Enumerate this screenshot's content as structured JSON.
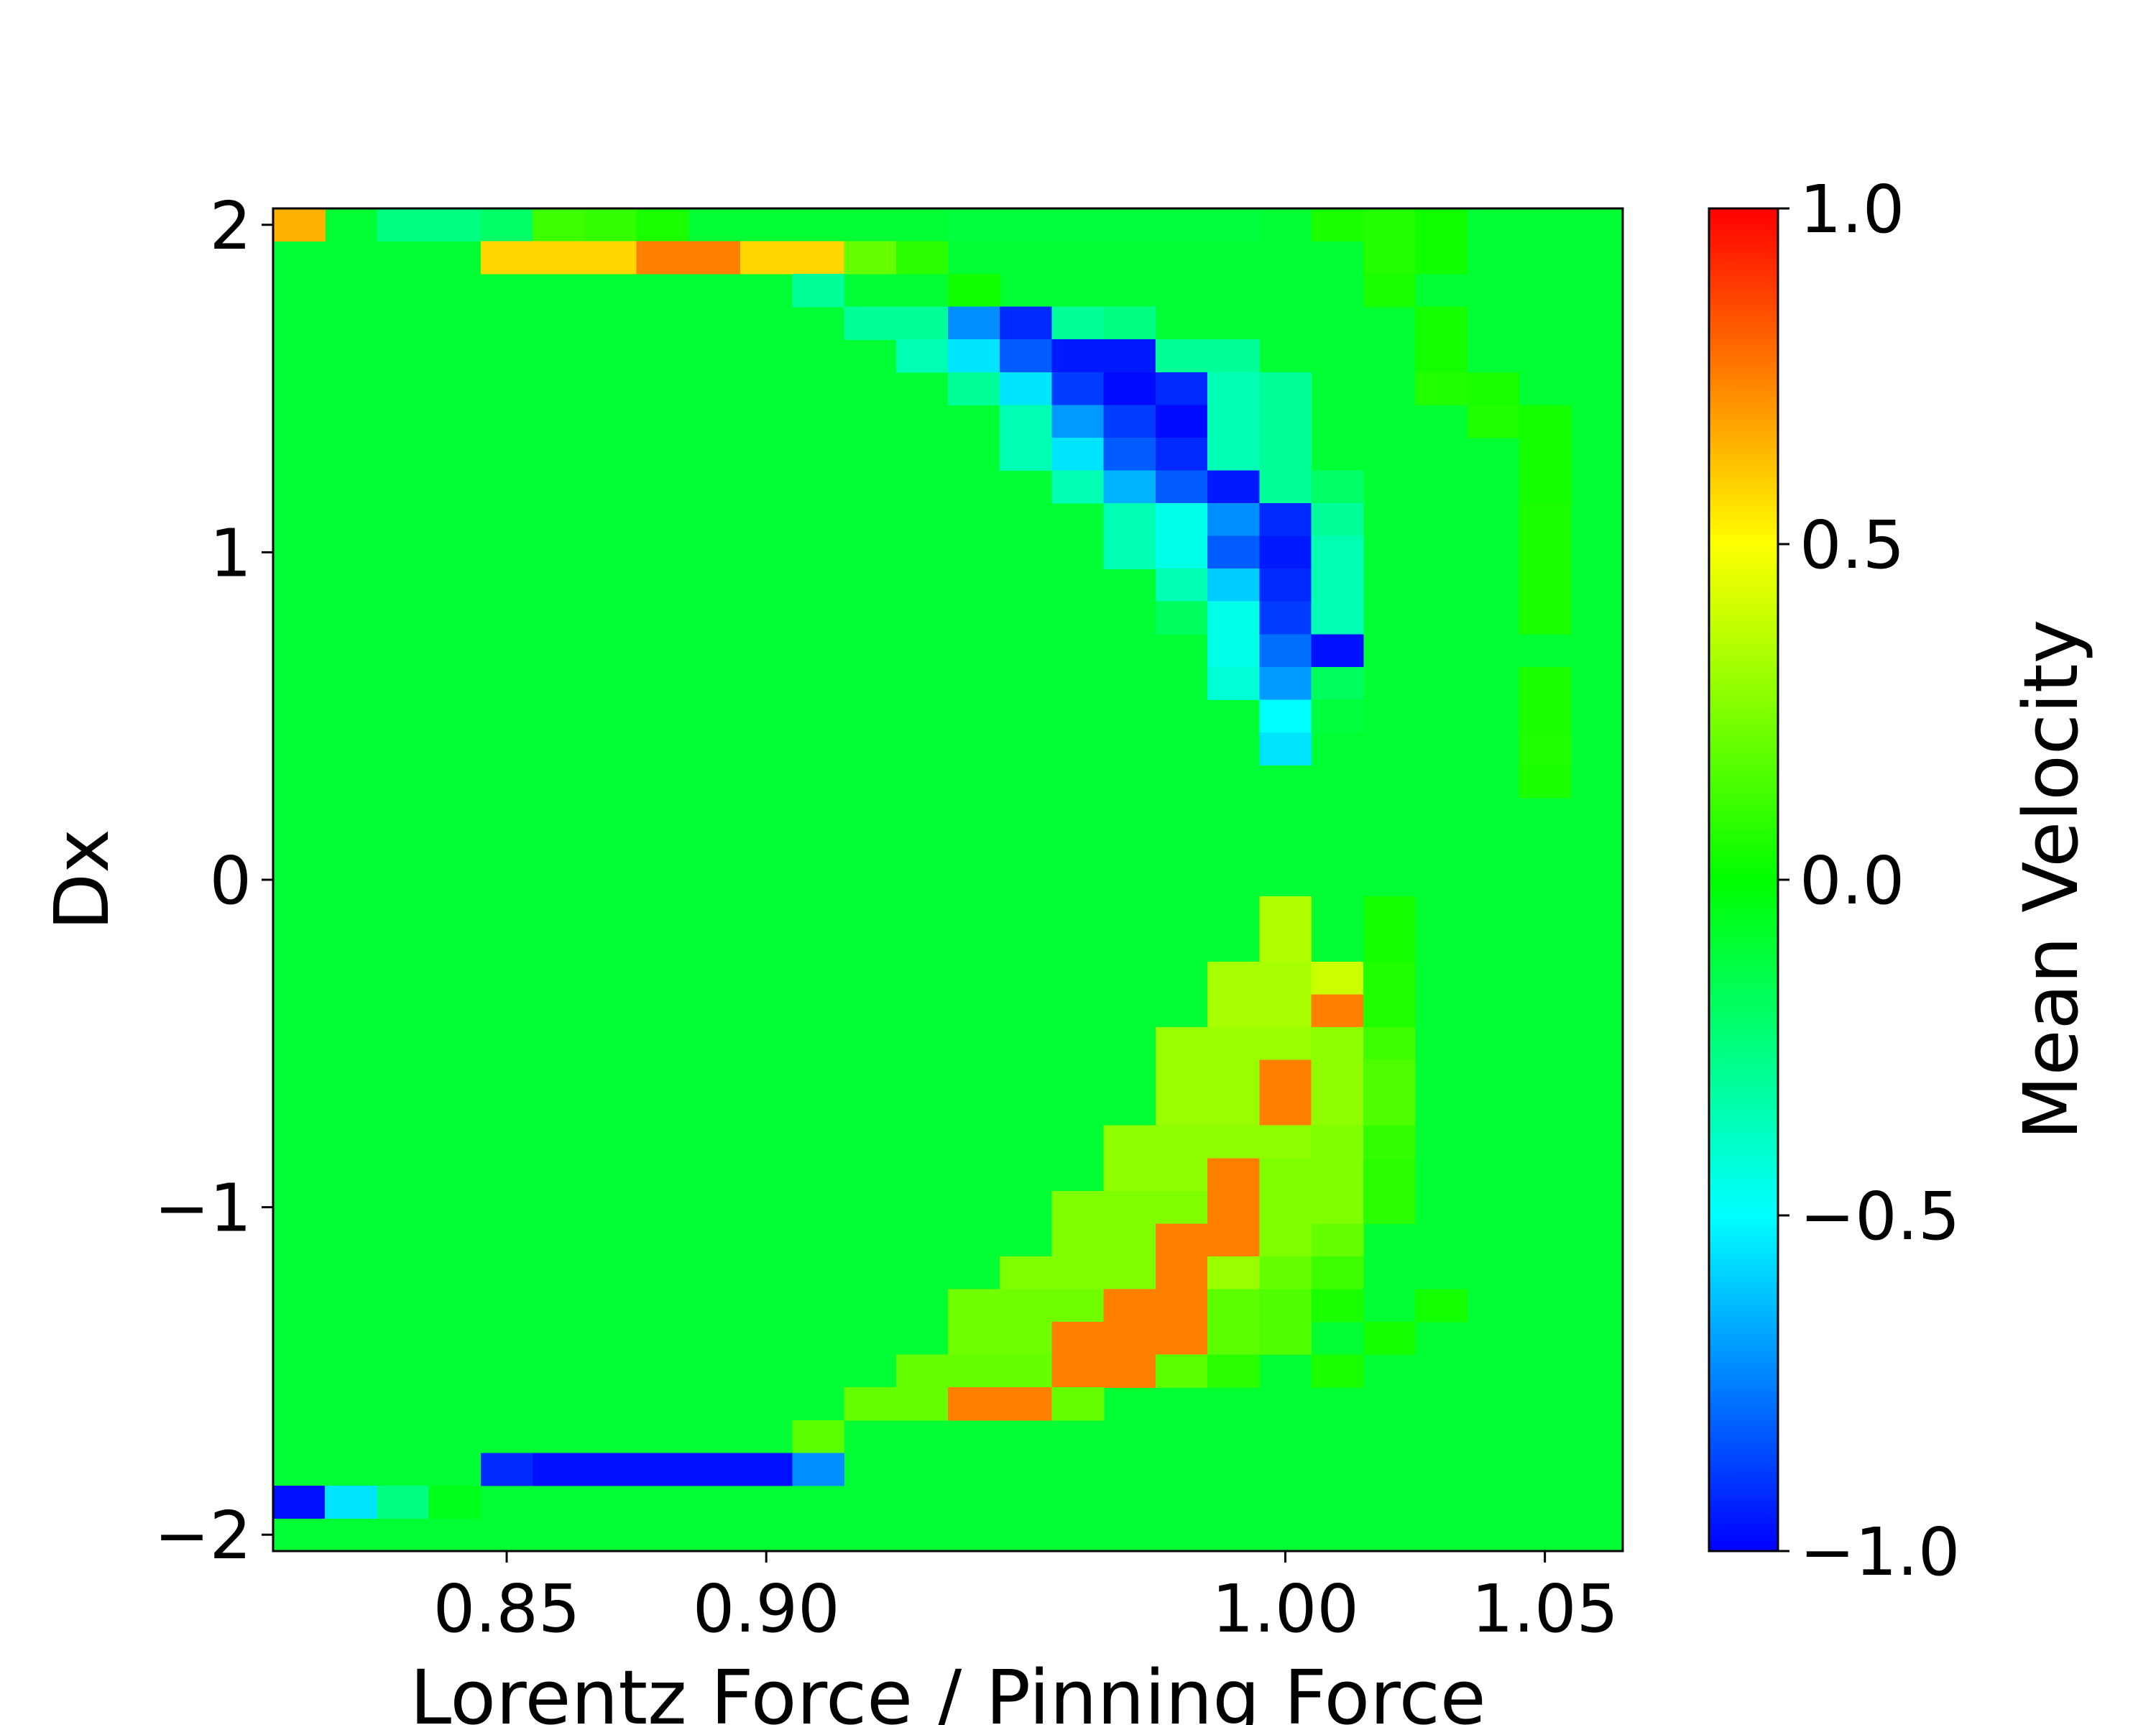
{
  "chart_data": {
    "type": "heatmap",
    "xlabel": "Lorentz Force / Pinning Force",
    "ylabel": "Dx",
    "xlim": [
      0.805,
      1.065
    ],
    "ylim": [
      -2.05,
      2.05
    ],
    "x_ticks": [
      0.85,
      0.9,
      1.0,
      1.05
    ],
    "x_tick_labels": [
      "0.85",
      "0.90",
      "1.00",
      "1.05"
    ],
    "y_ticks": [
      2,
      1,
      0,
      -1,
      -2
    ],
    "y_tick_labels": [
      "2",
      "1",
      "0",
      "−1",
      "−2"
    ],
    "grid": false,
    "x_start": 0.805,
    "x_step": 0.01,
    "y_start": 2.05,
    "y_step": -0.1,
    "colorbar": {
      "label": "Mean Velocity",
      "range": [
        -1.0,
        1.0
      ],
      "ticks": [
        1.0,
        0.5,
        0.0,
        -0.5,
        -1.0
      ],
      "tick_labels": [
        "1.0",
        "0.5",
        "0.0",
        "−0.5",
        "−1.0"
      ],
      "colormap": "jet-like"
    },
    "base_value": 0.0,
    "base_color": "#00ff33",
    "cells": [
      {
        "ix": 0,
        "iy": 0,
        "v": 0.65
      },
      {
        "ix": 2,
        "iy": 0,
        "v": -0.25
      },
      {
        "ix": 3,
        "iy": 0,
        "v": -0.25
      },
      {
        "ix": 4,
        "iy": 0,
        "v": -0.2
      },
      {
        "ix": 5,
        "iy": 0,
        "v": 0.12
      },
      {
        "ix": 6,
        "iy": 0,
        "v": 0.1
      },
      {
        "ix": 7,
        "iy": 0,
        "v": 0.05
      },
      {
        "ix": 13,
        "iy": 0,
        "v": -0.12
      },
      {
        "ix": 14,
        "iy": 0,
        "v": -0.12
      },
      {
        "ix": 15,
        "iy": 0,
        "v": -0.12
      },
      {
        "ix": 16,
        "iy": 0,
        "v": -0.12
      },
      {
        "ix": 17,
        "iy": 0,
        "v": -0.12
      },
      {
        "ix": 18,
        "iy": 0,
        "v": -0.12
      },
      {
        "ix": 20,
        "iy": 0,
        "v": 0.05
      },
      {
        "ix": 21,
        "iy": 0,
        "v": 0.07
      },
      {
        "ix": 22,
        "iy": 0,
        "v": 0.03
      },
      {
        "ix": 4,
        "iy": 1,
        "v": 0.58
      },
      {
        "ix": 5,
        "iy": 1,
        "v": 0.58
      },
      {
        "ix": 6,
        "iy": 1,
        "v": 0.58
      },
      {
        "ix": 7,
        "iy": 1,
        "v": 0.75
      },
      {
        "ix": 8,
        "iy": 1,
        "v": 0.75
      },
      {
        "ix": 9,
        "iy": 1,
        "v": 0.58
      },
      {
        "ix": 10,
        "iy": 1,
        "v": 0.58
      },
      {
        "ix": 11,
        "iy": 1,
        "v": 0.2
      },
      {
        "ix": 12,
        "iy": 1,
        "v": 0.08
      },
      {
        "ix": 21,
        "iy": 1,
        "v": 0.07
      },
      {
        "ix": 22,
        "iy": 1,
        "v": 0.03
      },
      {
        "ix": 10,
        "iy": 2,
        "v": -0.3
      },
      {
        "ix": 13,
        "iy": 2,
        "v": 0.03
      },
      {
        "ix": 21,
        "iy": 2,
        "v": 0.05
      },
      {
        "ix": 11,
        "iy": 3,
        "v": -0.3
      },
      {
        "ix": 12,
        "iy": 3,
        "v": -0.3
      },
      {
        "ix": 13,
        "iy": 3,
        "v": -0.72
      },
      {
        "ix": 14,
        "iy": 3,
        "v": -0.92
      },
      {
        "ix": 15,
        "iy": 3,
        "v": -0.3
      },
      {
        "ix": 16,
        "iy": 3,
        "v": -0.25
      },
      {
        "ix": 22,
        "iy": 3,
        "v": 0.04
      },
      {
        "ix": 12,
        "iy": 4,
        "v": -0.35
      },
      {
        "ix": 13,
        "iy": 4,
        "v": -0.55
      },
      {
        "ix": 14,
        "iy": 4,
        "v": -0.82
      },
      {
        "ix": 15,
        "iy": 4,
        "v": -0.95
      },
      {
        "ix": 16,
        "iy": 4,
        "v": -0.95
      },
      {
        "ix": 17,
        "iy": 4,
        "v": -0.3
      },
      {
        "ix": 18,
        "iy": 4,
        "v": -0.3
      },
      {
        "ix": 22,
        "iy": 4,
        "v": 0.04
      },
      {
        "ix": 13,
        "iy": 5,
        "v": -0.3
      },
      {
        "ix": 14,
        "iy": 5,
        "v": -0.55
      },
      {
        "ix": 15,
        "iy": 5,
        "v": -0.88
      },
      {
        "ix": 16,
        "iy": 5,
        "v": -0.98
      },
      {
        "ix": 17,
        "iy": 5,
        "v": -0.92
      },
      {
        "ix": 18,
        "iy": 5,
        "v": -0.35
      },
      {
        "ix": 19,
        "iy": 5,
        "v": -0.3
      },
      {
        "ix": 22,
        "iy": 5,
        "v": 0.06
      },
      {
        "ix": 23,
        "iy": 5,
        "v": 0.05
      },
      {
        "ix": 14,
        "iy": 6,
        "v": -0.35
      },
      {
        "ix": 15,
        "iy": 6,
        "v": -0.7
      },
      {
        "ix": 16,
        "iy": 6,
        "v": -0.88
      },
      {
        "ix": 17,
        "iy": 6,
        "v": -0.98
      },
      {
        "ix": 18,
        "iy": 6,
        "v": -0.35
      },
      {
        "ix": 19,
        "iy": 6,
        "v": -0.3
      },
      {
        "ix": 23,
        "iy": 6,
        "v": 0.06
      },
      {
        "ix": 24,
        "iy": 6,
        "v": 0.04
      },
      {
        "ix": 14,
        "iy": 7,
        "v": -0.35
      },
      {
        "ix": 15,
        "iy": 7,
        "v": -0.55
      },
      {
        "ix": 16,
        "iy": 7,
        "v": -0.82
      },
      {
        "ix": 17,
        "iy": 7,
        "v": -0.92
      },
      {
        "ix": 18,
        "iy": 7,
        "v": -0.35
      },
      {
        "ix": 19,
        "iy": 7,
        "v": -0.3
      },
      {
        "ix": 24,
        "iy": 7,
        "v": 0.04
      },
      {
        "ix": 15,
        "iy": 8,
        "v": -0.35
      },
      {
        "ix": 16,
        "iy": 8,
        "v": -0.65
      },
      {
        "ix": 17,
        "iy": 8,
        "v": -0.82
      },
      {
        "ix": 18,
        "iy": 8,
        "v": -0.95
      },
      {
        "ix": 19,
        "iy": 8,
        "v": -0.3
      },
      {
        "ix": 20,
        "iy": 8,
        "v": -0.2
      },
      {
        "ix": 24,
        "iy": 8,
        "v": 0.04
      },
      {
        "ix": 16,
        "iy": 9,
        "v": -0.35
      },
      {
        "ix": 17,
        "iy": 9,
        "v": -0.45
      },
      {
        "ix": 18,
        "iy": 9,
        "v": -0.72
      },
      {
        "ix": 19,
        "iy": 9,
        "v": -0.92
      },
      {
        "ix": 20,
        "iy": 9,
        "v": -0.3
      },
      {
        "ix": 24,
        "iy": 9,
        "v": 0.05
      },
      {
        "ix": 16,
        "iy": 10,
        "v": -0.35
      },
      {
        "ix": 17,
        "iy": 10,
        "v": -0.45
      },
      {
        "ix": 18,
        "iy": 10,
        "v": -0.82
      },
      {
        "ix": 19,
        "iy": 10,
        "v": -0.95
      },
      {
        "ix": 20,
        "iy": 10,
        "v": -0.35
      },
      {
        "ix": 24,
        "iy": 10,
        "v": 0.05
      },
      {
        "ix": 17,
        "iy": 11,
        "v": -0.35
      },
      {
        "ix": 18,
        "iy": 11,
        "v": -0.6
      },
      {
        "ix": 19,
        "iy": 11,
        "v": -0.92
      },
      {
        "ix": 20,
        "iy": 11,
        "v": -0.35
      },
      {
        "ix": 24,
        "iy": 11,
        "v": 0.05
      },
      {
        "ix": 17,
        "iy": 12,
        "v": -0.18
      },
      {
        "ix": 18,
        "iy": 12,
        "v": -0.45
      },
      {
        "ix": 19,
        "iy": 12,
        "v": -0.88
      },
      {
        "ix": 20,
        "iy": 12,
        "v": -0.35
      },
      {
        "ix": 24,
        "iy": 12,
        "v": 0.05
      },
      {
        "ix": 18,
        "iy": 13,
        "v": -0.45
      },
      {
        "ix": 19,
        "iy": 13,
        "v": -0.78
      },
      {
        "ix": 20,
        "iy": 13,
        "v": -0.97
      },
      {
        "ix": 18,
        "iy": 14,
        "v": -0.42
      },
      {
        "ix": 19,
        "iy": 14,
        "v": -0.7
      },
      {
        "ix": 20,
        "iy": 14,
        "v": -0.18
      },
      {
        "ix": 24,
        "iy": 14,
        "v": 0.05
      },
      {
        "ix": 19,
        "iy": 15,
        "v": -0.5
      },
      {
        "ix": 20,
        "iy": 15,
        "v": -0.12
      },
      {
        "ix": 24,
        "iy": 15,
        "v": 0.05
      },
      {
        "ix": 19,
        "iy": 16,
        "v": -0.55
      },
      {
        "ix": 24,
        "iy": 16,
        "v": 0.06
      },
      {
        "ix": 24,
        "iy": 17,
        "v": 0.05
      },
      {
        "ix": 19,
        "iy": 21,
        "v": 0.35
      },
      {
        "ix": 21,
        "iy": 21,
        "v": 0.04
      },
      {
        "ix": 19,
        "iy": 22,
        "v": 0.35
      },
      {
        "ix": 21,
        "iy": 22,
        "v": 0.04
      },
      {
        "ix": 18,
        "iy": 23,
        "v": 0.33
      },
      {
        "ix": 19,
        "iy": 23,
        "v": 0.33
      },
      {
        "ix": 20,
        "iy": 23,
        "v": 0.4
      },
      {
        "ix": 21,
        "iy": 23,
        "v": 0.06
      },
      {
        "ix": 18,
        "iy": 24,
        "v": 0.33
      },
      {
        "ix": 19,
        "iy": 24,
        "v": 0.33
      },
      {
        "ix": 20,
        "iy": 24,
        "v": 0.75
      },
      {
        "ix": 21,
        "iy": 24,
        "v": 0.06
      },
      {
        "ix": 17,
        "iy": 25,
        "v": 0.3
      },
      {
        "ix": 18,
        "iy": 25,
        "v": 0.3
      },
      {
        "ix": 19,
        "iy": 25,
        "v": 0.3
      },
      {
        "ix": 20,
        "iy": 25,
        "v": 0.28
      },
      {
        "ix": 21,
        "iy": 25,
        "v": 0.12
      },
      {
        "ix": 17,
        "iy": 26,
        "v": 0.3
      },
      {
        "ix": 18,
        "iy": 26,
        "v": 0.3
      },
      {
        "ix": 19,
        "iy": 26,
        "v": 0.75
      },
      {
        "ix": 20,
        "iy": 26,
        "v": 0.28
      },
      {
        "ix": 21,
        "iy": 26,
        "v": 0.15
      },
      {
        "ix": 17,
        "iy": 27,
        "v": 0.3
      },
      {
        "ix": 18,
        "iy": 27,
        "v": 0.3
      },
      {
        "ix": 19,
        "iy": 27,
        "v": 0.75
      },
      {
        "ix": 20,
        "iy": 27,
        "v": 0.28
      },
      {
        "ix": 21,
        "iy": 27,
        "v": 0.15
      },
      {
        "ix": 16,
        "iy": 28,
        "v": 0.28
      },
      {
        "ix": 17,
        "iy": 28,
        "v": 0.28
      },
      {
        "ix": 18,
        "iy": 28,
        "v": 0.28
      },
      {
        "ix": 19,
        "iy": 28,
        "v": 0.28
      },
      {
        "ix": 20,
        "iy": 28,
        "v": 0.25
      },
      {
        "ix": 21,
        "iy": 28,
        "v": 0.1
      },
      {
        "ix": 16,
        "iy": 29,
        "v": 0.28
      },
      {
        "ix": 17,
        "iy": 29,
        "v": 0.28
      },
      {
        "ix": 18,
        "iy": 29,
        "v": 0.75
      },
      {
        "ix": 19,
        "iy": 29,
        "v": 0.25
      },
      {
        "ix": 20,
        "iy": 29,
        "v": 0.25
      },
      {
        "ix": 21,
        "iy": 29,
        "v": 0.08
      },
      {
        "ix": 15,
        "iy": 30,
        "v": 0.25
      },
      {
        "ix": 16,
        "iy": 30,
        "v": 0.25
      },
      {
        "ix": 17,
        "iy": 30,
        "v": 0.25
      },
      {
        "ix": 18,
        "iy": 30,
        "v": 0.75
      },
      {
        "ix": 19,
        "iy": 30,
        "v": 0.25
      },
      {
        "ix": 20,
        "iy": 30,
        "v": 0.25
      },
      {
        "ix": 21,
        "iy": 30,
        "v": 0.08
      },
      {
        "ix": 15,
        "iy": 31,
        "v": 0.25
      },
      {
        "ix": 16,
        "iy": 31,
        "v": 0.25
      },
      {
        "ix": 17,
        "iy": 31,
        "v": 0.75
      },
      {
        "ix": 18,
        "iy": 31,
        "v": 0.75
      },
      {
        "ix": 19,
        "iy": 31,
        "v": 0.25
      },
      {
        "ix": 20,
        "iy": 31,
        "v": 0.2
      },
      {
        "ix": 14,
        "iy": 32,
        "v": 0.25
      },
      {
        "ix": 15,
        "iy": 32,
        "v": 0.25
      },
      {
        "ix": 16,
        "iy": 32,
        "v": 0.25
      },
      {
        "ix": 17,
        "iy": 32,
        "v": 0.75
      },
      {
        "ix": 18,
        "iy": 32,
        "v": 0.3
      },
      {
        "ix": 19,
        "iy": 32,
        "v": 0.2
      },
      {
        "ix": 20,
        "iy": 32,
        "v": 0.12
      },
      {
        "ix": 13,
        "iy": 33,
        "v": 0.22
      },
      {
        "ix": 14,
        "iy": 33,
        "v": 0.22
      },
      {
        "ix": 15,
        "iy": 33,
        "v": 0.22
      },
      {
        "ix": 16,
        "iy": 33,
        "v": 0.75
      },
      {
        "ix": 17,
        "iy": 33,
        "v": 0.75
      },
      {
        "ix": 18,
        "iy": 33,
        "v": 0.18
      },
      {
        "ix": 19,
        "iy": 33,
        "v": 0.15
      },
      {
        "ix": 20,
        "iy": 33,
        "v": 0.05
      },
      {
        "ix": 22,
        "iy": 33,
        "v": 0.04
      },
      {
        "ix": 13,
        "iy": 34,
        "v": 0.22
      },
      {
        "ix": 14,
        "iy": 34,
        "v": 0.22
      },
      {
        "ix": 15,
        "iy": 34,
        "v": 0.75
      },
      {
        "ix": 16,
        "iy": 34,
        "v": 0.75
      },
      {
        "ix": 17,
        "iy": 34,
        "v": 0.75
      },
      {
        "ix": 18,
        "iy": 34,
        "v": 0.18
      },
      {
        "ix": 19,
        "iy": 34,
        "v": 0.15
      },
      {
        "ix": 21,
        "iy": 34,
        "v": 0.04
      },
      {
        "ix": 12,
        "iy": 35,
        "v": 0.2
      },
      {
        "ix": 13,
        "iy": 35,
        "v": 0.2
      },
      {
        "ix": 14,
        "iy": 35,
        "v": 0.2
      },
      {
        "ix": 15,
        "iy": 35,
        "v": 0.75
      },
      {
        "ix": 16,
        "iy": 35,
        "v": 0.75
      },
      {
        "ix": 17,
        "iy": 35,
        "v": 0.18
      },
      {
        "ix": 18,
        "iy": 35,
        "v": 0.08
      },
      {
        "ix": 20,
        "iy": 35,
        "v": 0.05
      },
      {
        "ix": 11,
        "iy": 36,
        "v": 0.2
      },
      {
        "ix": 12,
        "iy": 36,
        "v": 0.2
      },
      {
        "ix": 13,
        "iy": 36,
        "v": 0.75
      },
      {
        "ix": 14,
        "iy": 36,
        "v": 0.75
      },
      {
        "ix": 15,
        "iy": 36,
        "v": 0.2
      },
      {
        "ix": 10,
        "iy": 37,
        "v": 0.18
      },
      {
        "ix": 4,
        "iy": 38,
        "v": -0.92
      },
      {
        "ix": 5,
        "iy": 38,
        "v": -0.97
      },
      {
        "ix": 6,
        "iy": 38,
        "v": -0.97
      },
      {
        "ix": 7,
        "iy": 38,
        "v": -0.97
      },
      {
        "ix": 8,
        "iy": 38,
        "v": -0.97
      },
      {
        "ix": 9,
        "iy": 38,
        "v": -0.97
      },
      {
        "ix": 10,
        "iy": 38,
        "v": -0.72
      },
      {
        "ix": 0,
        "iy": 39,
        "v": -0.97
      },
      {
        "ix": 1,
        "iy": 39,
        "v": -0.55
      },
      {
        "ix": 2,
        "iy": 39,
        "v": -0.25
      },
      {
        "ix": 3,
        "iy": 39,
        "v": -0.05
      }
    ]
  }
}
